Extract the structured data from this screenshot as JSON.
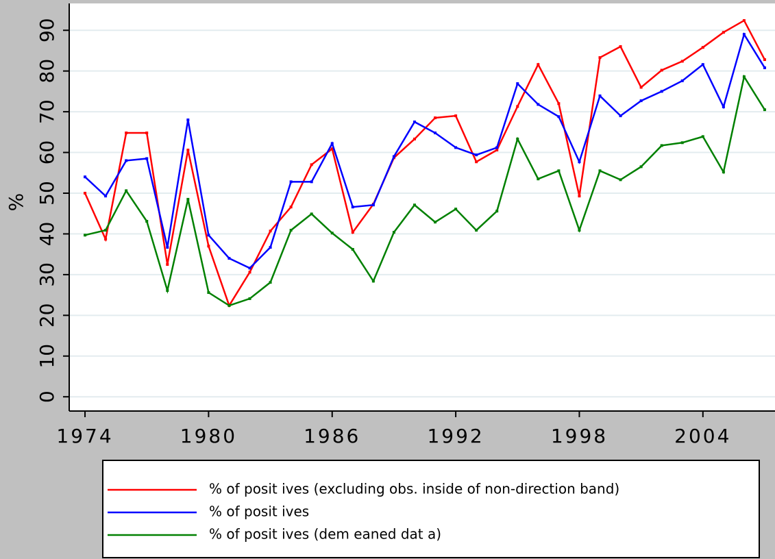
{
  "chart_data": {
    "type": "line",
    "y_label": "%",
    "x": [
      1974,
      1975,
      1976,
      1977,
      1978,
      1979,
      1980,
      1981,
      1982,
      1983,
      1984,
      1985,
      1986,
      1987,
      1988,
      1989,
      1990,
      1991,
      1992,
      1993,
      1994,
      1995,
      1996,
      1997,
      1998,
      1999,
      2000,
      2001,
      2002,
      2003,
      2004,
      2005,
      2006,
      2007
    ],
    "series": [
      {
        "name": "% of posit ives (excluding obs. inside of non-direction band)",
        "color": "#ff0000",
        "values": [
          50,
          38.7,
          64.8,
          64.8,
          32.5,
          60.6,
          37,
          22.4,
          30.6,
          40.7,
          46.6,
          57,
          60.9,
          40.4,
          47.3,
          58.7,
          63.3,
          68.5,
          69,
          57.7,
          60.6,
          71.3,
          81.6,
          72,
          49.3,
          83.3,
          86,
          76,
          80.2,
          82.4,
          85.8,
          89.5,
          92.4,
          82.8
        ]
      },
      {
        "name": "% of posit ives",
        "color": "#0000ff",
        "values": [
          54,
          49.3,
          58,
          58.5,
          36.7,
          68,
          39.7,
          34,
          31.6,
          36.7,
          52.8,
          52.8,
          62.2,
          46.6,
          47.1,
          59,
          67.5,
          64.8,
          61.2,
          59.4,
          61.2,
          76.9,
          71.8,
          68.8,
          57.7,
          73.9,
          69,
          72.7,
          75,
          77.6,
          81.6,
          71.2,
          89,
          80.8
        ]
      },
      {
        "name": "% of posit ives (dem eaned dat a)",
        "color": "#008000",
        "values": [
          39.7,
          40.9,
          50.6,
          43.1,
          26.1,
          48.5,
          25.6,
          22.4,
          24.1,
          28.1,
          40.9,
          44.9,
          40.2,
          36.2,
          28.4,
          40.4,
          47.1,
          42.9,
          46.1,
          40.9,
          45.6,
          63.3,
          53.5,
          55.5,
          40.9,
          55.5,
          53.3,
          56.5,
          61.7,
          62.4,
          63.9,
          55.2,
          78.6,
          70.5
        ]
      }
    ],
    "xlim": [
      1973.2,
      2007.5
    ],
    "xticks": [
      1974,
      1980,
      1986,
      1992,
      1998,
      2004
    ],
    "ylim": [
      -3.5,
      96.6
    ],
    "yticks": [
      0,
      10,
      20,
      30,
      40,
      50,
      60,
      70,
      80,
      90
    ],
    "grid": true
  }
}
